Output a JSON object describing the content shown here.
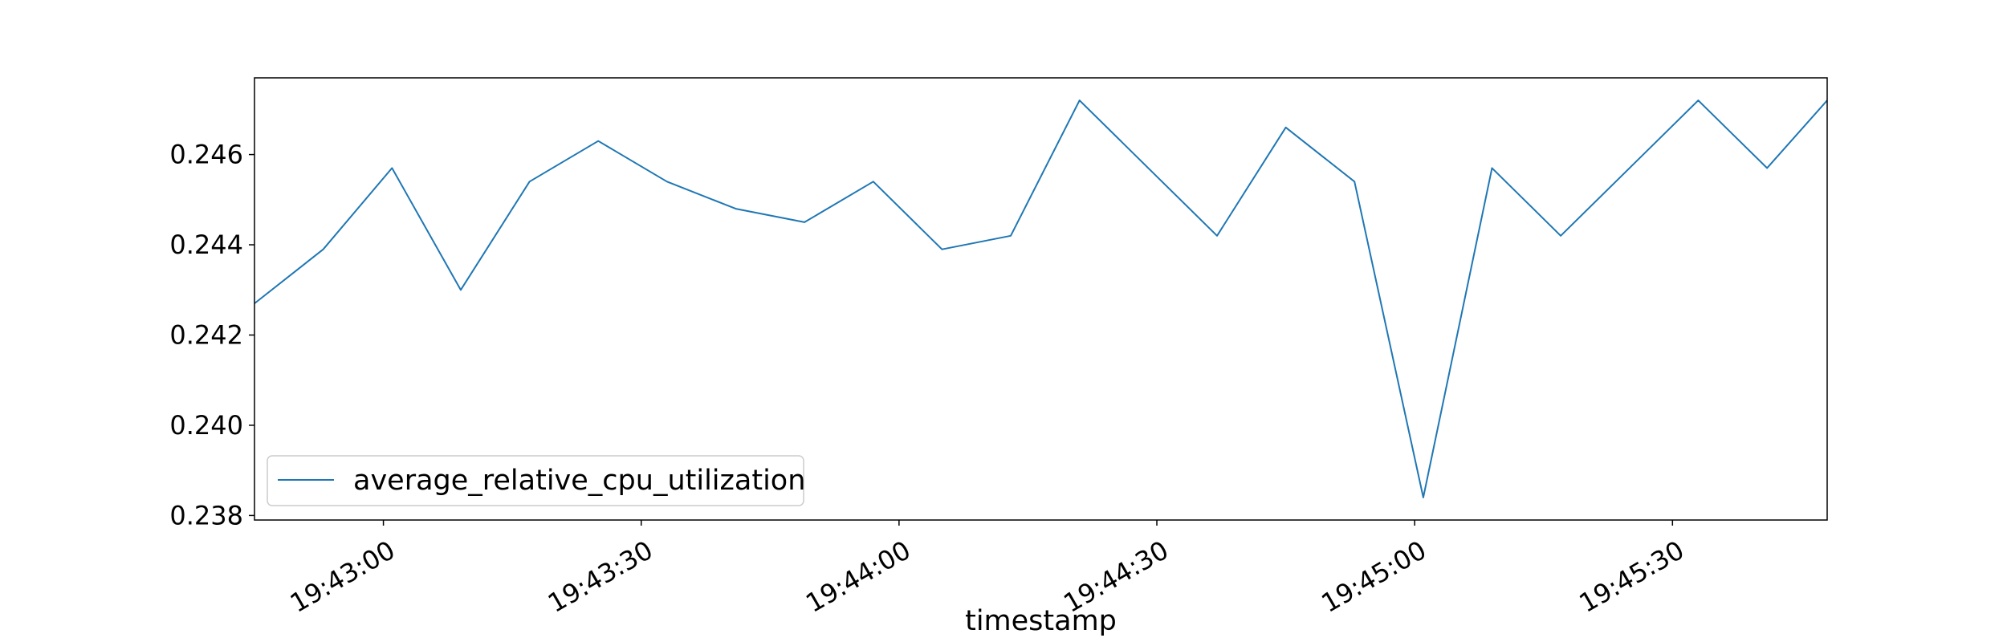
{
  "chart_data": {
    "type": "line",
    "title": "",
    "xlabel": "timestamp",
    "ylabel": "",
    "x_ticks": [
      "19:43:00",
      "19:43:30",
      "19:44:00",
      "19:44:30",
      "19:45:00",
      "19:45:30"
    ],
    "y_ticks": [
      "0.238",
      "0.240",
      "0.242",
      "0.244",
      "0.246"
    ],
    "ylim": [
      0.2379,
      0.2477
    ],
    "xlim": [
      "19:42:45",
      "19:45:48"
    ],
    "grid": false,
    "legend_position": "lower-left",
    "series": [
      {
        "name": "average_relative_cpu_utilization",
        "color": "#1f77b4",
        "x": [
          "19:42:45",
          "19:42:53",
          "19:43:01",
          "19:43:09",
          "19:43:17",
          "19:43:25",
          "19:43:33",
          "19:43:41",
          "19:43:49",
          "19:43:57",
          "19:44:05",
          "19:44:13",
          "19:44:21",
          "19:44:29",
          "19:44:37",
          "19:44:45",
          "19:44:53",
          "19:45:01",
          "19:45:09",
          "19:45:17",
          "19:45:25",
          "19:45:33",
          "19:45:41",
          "19:45:48"
        ],
        "values": [
          0.2427,
          0.2439,
          0.2457,
          0.243,
          0.2454,
          0.2463,
          0.2454,
          0.2448,
          0.2445,
          0.2454,
          0.2439,
          0.2442,
          0.2472,
          0.2457,
          0.2442,
          0.2466,
          0.2454,
          0.2384,
          0.2457,
          0.2442,
          0.2457,
          0.2472,
          0.2457,
          0.2472
        ]
      }
    ]
  }
}
